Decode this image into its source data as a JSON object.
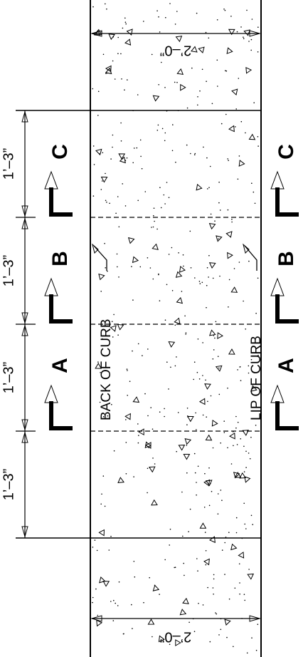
{
  "dimensions": {
    "top": "2’–0”",
    "bottom": "2’–0”",
    "left": [
      "1’–3”",
      "1’–3”",
      "1’–3”",
      "1’–3”"
    ]
  },
  "section_marks": {
    "left": [
      "C",
      "B",
      "A"
    ],
    "right": [
      "C",
      "B",
      "A"
    ]
  },
  "labels": {
    "back_of_curb": "BACK OF CURB",
    "lip_of_curb": "LIP OF CURB"
  }
}
